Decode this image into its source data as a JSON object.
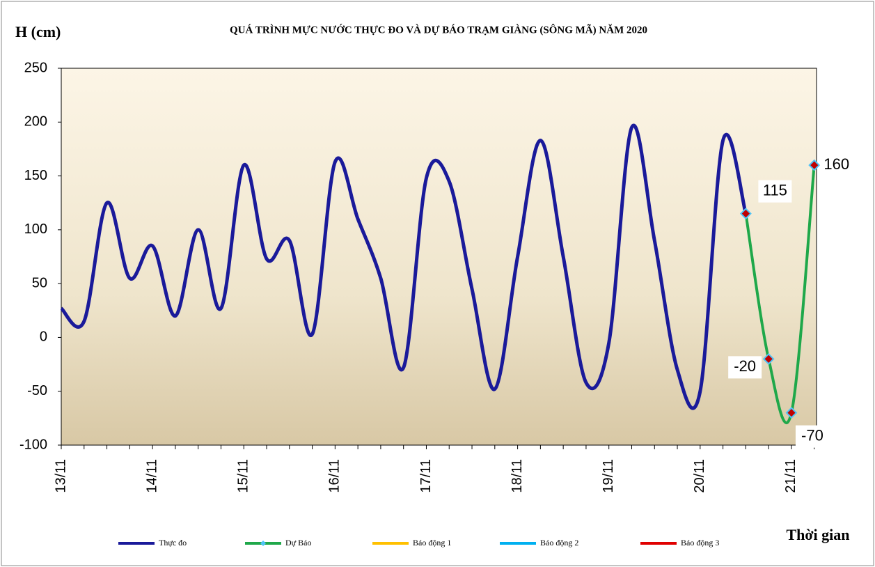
{
  "chart_data": {
    "type": "line",
    "title": "QUÁ TRÌNH MỰC NƯỚC THỰC ĐO VÀ DỰ BÁO TRẠM GIÀNG (SÔNG MÃ) NĂM 2020",
    "y_label": "H (cm)",
    "x_label": "Thời gian",
    "categories": [
      "13/11",
      null,
      null,
      null,
      "14/11",
      null,
      null,
      null,
      "15/11",
      null,
      null,
      null,
      "16/11",
      null,
      null,
      null,
      "17/11",
      null,
      null,
      null,
      "18/11",
      null,
      null,
      null,
      "19/11",
      null,
      null,
      null,
      "20/11",
      null,
      null,
      null,
      "21/11",
      null
    ],
    "series": [
      {
        "name": "Thực đo",
        "color": "#1a1a9a",
        "values": [
          27,
          15,
          125,
          55,
          85,
          20,
          100,
          27,
          160,
          73,
          90,
          3,
          163,
          110,
          55,
          -28,
          148,
          145,
          45,
          -48,
          75,
          183,
          75,
          -42,
          -5,
          195,
          90,
          -30,
          -50,
          183,
          115,
          null,
          null,
          null
        ]
      },
      {
        "name": "Dự Báo",
        "color": "#1fa84a",
        "marker_color": "#c00000",
        "values": [
          null,
          null,
          null,
          null,
          null,
          null,
          null,
          null,
          null,
          null,
          null,
          null,
          null,
          null,
          null,
          null,
          null,
          null,
          null,
          null,
          null,
          null,
          null,
          null,
          null,
          null,
          null,
          null,
          null,
          null,
          115,
          -20,
          -70,
          160
        ]
      },
      {
        "name": "Báo động 1",
        "color": "#ffc000"
      },
      {
        "name": "Báo động 2",
        "color": "#00b0f0"
      },
      {
        "name": "Báo động 3",
        "color": "#e00000"
      }
    ],
    "ylim": [
      -100,
      250
    ],
    "yticks": [
      -100,
      -50,
      0,
      50,
      100,
      150,
      200,
      250
    ],
    "grid": false,
    "legend": "bottom"
  }
}
